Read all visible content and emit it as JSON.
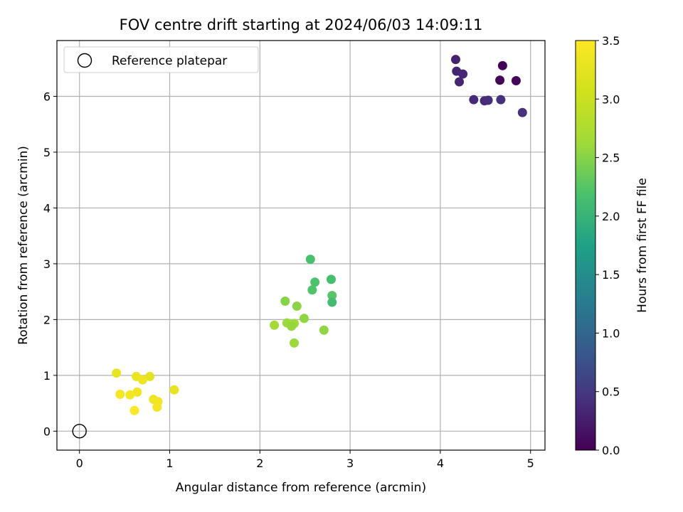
{
  "chart_data": {
    "type": "scatter",
    "title": "FOV centre drift starting at 2024/06/03 14:09:11",
    "xlabel": "Angular distance from reference (arcmin)",
    "ylabel": "Rotation from reference (arcmin)",
    "xlim": [
      -0.25,
      5.16
    ],
    "ylim": [
      -0.34,
      7.0
    ],
    "xticks": [
      0,
      1,
      2,
      3,
      4,
      5
    ],
    "xtick_labels": [
      "0",
      "1",
      "2",
      "3",
      "4",
      "5"
    ],
    "yticks": [
      0,
      1,
      2,
      3,
      4,
      5,
      6
    ],
    "ytick_labels": [
      "0",
      "1",
      "2",
      "3",
      "4",
      "5",
      "6"
    ],
    "grid": true,
    "legend": {
      "position": "upper-left",
      "entries": [
        "Reference platepar"
      ]
    },
    "colormap": "viridis",
    "colorbar": {
      "label": "Hours from first FF file",
      "range": [
        0.0,
        3.5
      ],
      "ticks": [
        0.0,
        0.5,
        1.0,
        1.5,
        2.0,
        2.5,
        3.0,
        3.5
      ],
      "tick_labels": [
        "0.0",
        "0.5",
        "1.0",
        "1.5",
        "2.0",
        "2.5",
        "3.0",
        "3.5"
      ]
    },
    "reference_point": {
      "x": 0,
      "y": 0
    },
    "points": [
      {
        "x": 4.69,
        "y": 6.55,
        "c": 0.02
      },
      {
        "x": 4.66,
        "y": 6.29,
        "c": 0.04
      },
      {
        "x": 4.84,
        "y": 6.28,
        "c": 0.05
      },
      {
        "x": 4.17,
        "y": 6.66,
        "c": 0.3
      },
      {
        "x": 4.18,
        "y": 6.45,
        "c": 0.32
      },
      {
        "x": 4.25,
        "y": 6.4,
        "c": 0.34
      },
      {
        "x": 4.21,
        "y": 6.26,
        "c": 0.33
      },
      {
        "x": 4.37,
        "y": 5.94,
        "c": 0.36
      },
      {
        "x": 4.49,
        "y": 5.92,
        "c": 0.38
      },
      {
        "x": 4.53,
        "y": 5.93,
        "c": 0.4
      },
      {
        "x": 4.67,
        "y": 5.94,
        "c": 0.42
      },
      {
        "x": 4.91,
        "y": 5.71,
        "c": 0.44
      },
      {
        "x": 2.56,
        "y": 3.08,
        "c": 2.18
      },
      {
        "x": 2.61,
        "y": 2.67,
        "c": 2.2
      },
      {
        "x": 2.79,
        "y": 2.72,
        "c": 2.15
      },
      {
        "x": 2.58,
        "y": 2.53,
        "c": 2.22
      },
      {
        "x": 2.8,
        "y": 2.43,
        "c": 2.25
      },
      {
        "x": 2.8,
        "y": 2.31,
        "c": 2.12
      },
      {
        "x": 2.28,
        "y": 2.33,
        "c": 2.5
      },
      {
        "x": 2.41,
        "y": 2.24,
        "c": 2.52
      },
      {
        "x": 2.49,
        "y": 2.02,
        "c": 2.55
      },
      {
        "x": 2.3,
        "y": 1.94,
        "c": 2.6
      },
      {
        "x": 2.38,
        "y": 1.93,
        "c": 2.62
      },
      {
        "x": 2.35,
        "y": 1.88,
        "c": 2.58
      },
      {
        "x": 2.16,
        "y": 1.9,
        "c": 2.65
      },
      {
        "x": 2.71,
        "y": 1.81,
        "c": 2.55
      },
      {
        "x": 2.38,
        "y": 1.58,
        "c": 2.6
      },
      {
        "x": 0.41,
        "y": 1.04,
        "c": 3.3
      },
      {
        "x": 0.63,
        "y": 0.98,
        "c": 3.32
      },
      {
        "x": 0.78,
        "y": 0.98,
        "c": 3.25
      },
      {
        "x": 0.7,
        "y": 0.92,
        "c": 3.34
      },
      {
        "x": 1.05,
        "y": 0.74,
        "c": 3.3
      },
      {
        "x": 0.64,
        "y": 0.7,
        "c": 3.38
      },
      {
        "x": 0.45,
        "y": 0.66,
        "c": 3.42
      },
      {
        "x": 0.56,
        "y": 0.65,
        "c": 3.4
      },
      {
        "x": 0.82,
        "y": 0.57,
        "c": 3.36
      },
      {
        "x": 0.87,
        "y": 0.53,
        "c": 3.39
      },
      {
        "x": 0.86,
        "y": 0.43,
        "c": 3.41
      },
      {
        "x": 0.61,
        "y": 0.37,
        "c": 3.48
      }
    ]
  }
}
